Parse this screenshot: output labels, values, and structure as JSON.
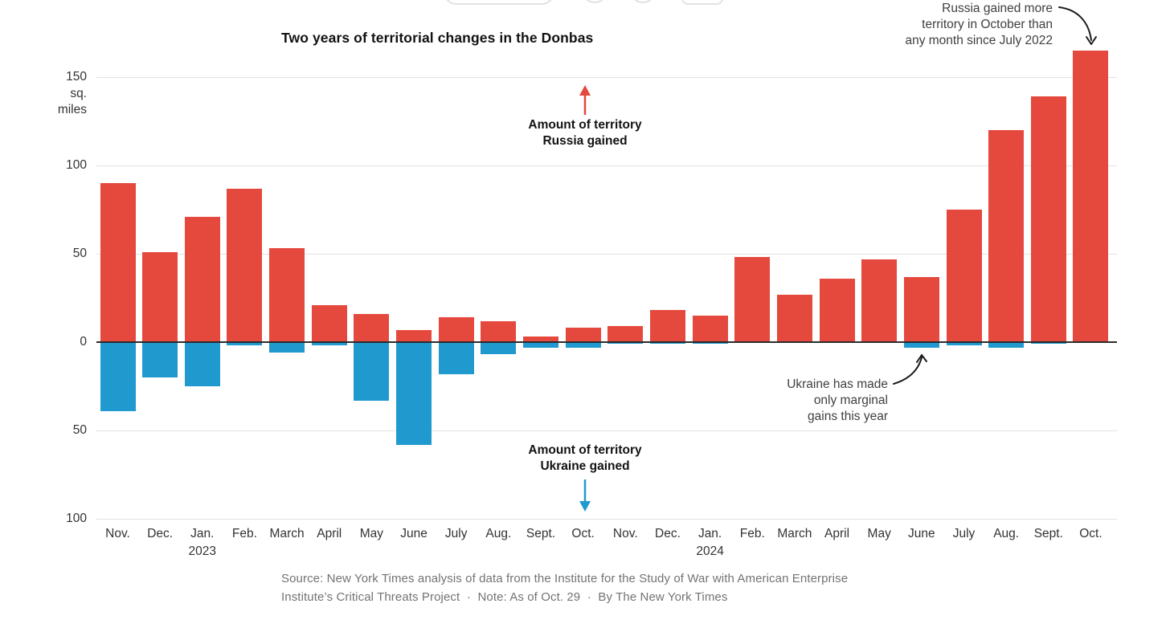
{
  "page": {
    "title": "Two years of territorial changes in the Donbas"
  },
  "axis": {
    "unit_line1": "sq.",
    "unit_line2": "miles",
    "year_left": "2023",
    "year_right": "2024"
  },
  "series_labels": {
    "russia_line1": "Amount of territory",
    "russia_line2": "Russia gained",
    "ukraine_line1": "Amount of territory",
    "ukraine_line2": "Ukraine gained"
  },
  "annotations": {
    "october_line1": "Russia gained more",
    "october_line2": "territory in October than",
    "october_line3": "any month since July 2022",
    "ukraine_line1": "Ukraine has made",
    "ukraine_line2": "only marginal",
    "ukraine_line3": "gains this year"
  },
  "source": {
    "line1": "Source: New York Times analysis of data from the Institute for the Study of War with American Enterprise",
    "line2": "Institute’s Critical Threats Project  ·  Note: As of Oct. 29  ·  By The New York Times"
  },
  "colors": {
    "russia_red": "#e5483d",
    "ukraine_blue": "#2099ce",
    "gridline": "#e2e2e2",
    "zero_line": "#2b2b2b",
    "annotation_text": "#3f3f3f",
    "source_text": "#737373"
  },
  "chart_data": {
    "type": "bar",
    "title": "Two years of territorial changes in the Donbas",
    "xlabel": "",
    "ylabel": "sq. miles",
    "ylim": [
      -100,
      170
    ],
    "yticks": [
      150,
      100,
      50,
      0,
      -50,
      -100
    ],
    "grid": "horizontal",
    "legend_position": "inline-annotations",
    "categories": [
      "Nov. 2022",
      "Dec. 2022",
      "Jan. 2023",
      "Feb. 2023",
      "March 2023",
      "April 2023",
      "May 2023",
      "June 2023",
      "July 2023",
      "Aug. 2023",
      "Sept. 2023",
      "Oct. 2023",
      "Nov. 2023",
      "Dec. 2023",
      "Jan. 2024",
      "Feb. 2024",
      "March 2024",
      "April 2024",
      "May 2024",
      "June 2024",
      "July 2024",
      "Aug. 2024",
      "Sept. 2024",
      "Oct. 2024"
    ],
    "month_labels": [
      "Nov.",
      "Dec.",
      "Jan.",
      "Feb.",
      "March",
      "April",
      "May",
      "June",
      "July",
      "Aug.",
      "Sept.",
      "Oct.",
      "Nov.",
      "Dec.",
      "Jan.",
      "Feb.",
      "March",
      "April",
      "May",
      "June",
      "July",
      "Aug.",
      "Sept.",
      "Oct."
    ],
    "year_label_indices": {
      "2": "2023",
      "14": "2024"
    },
    "series": [
      {
        "name": "Amount of territory Russia gained",
        "color": "#e5483d",
        "values": [
          90,
          51,
          71,
          87,
          53,
          21,
          16,
          7,
          14,
          12,
          3,
          8,
          9,
          18,
          15,
          48,
          27,
          36,
          47,
          37,
          75,
          120,
          139,
          165
        ]
      },
      {
        "name": "Amount of territory Ukraine gained",
        "color": "#2099ce",
        "values": [
          -39,
          -20,
          -25,
          -2,
          -6,
          -2,
          -33,
          -58,
          -18,
          -7,
          -3,
          -3,
          -1,
          -1,
          -1,
          0,
          0,
          0,
          0,
          -3,
          -2,
          -3,
          -1,
          0
        ]
      }
    ]
  }
}
